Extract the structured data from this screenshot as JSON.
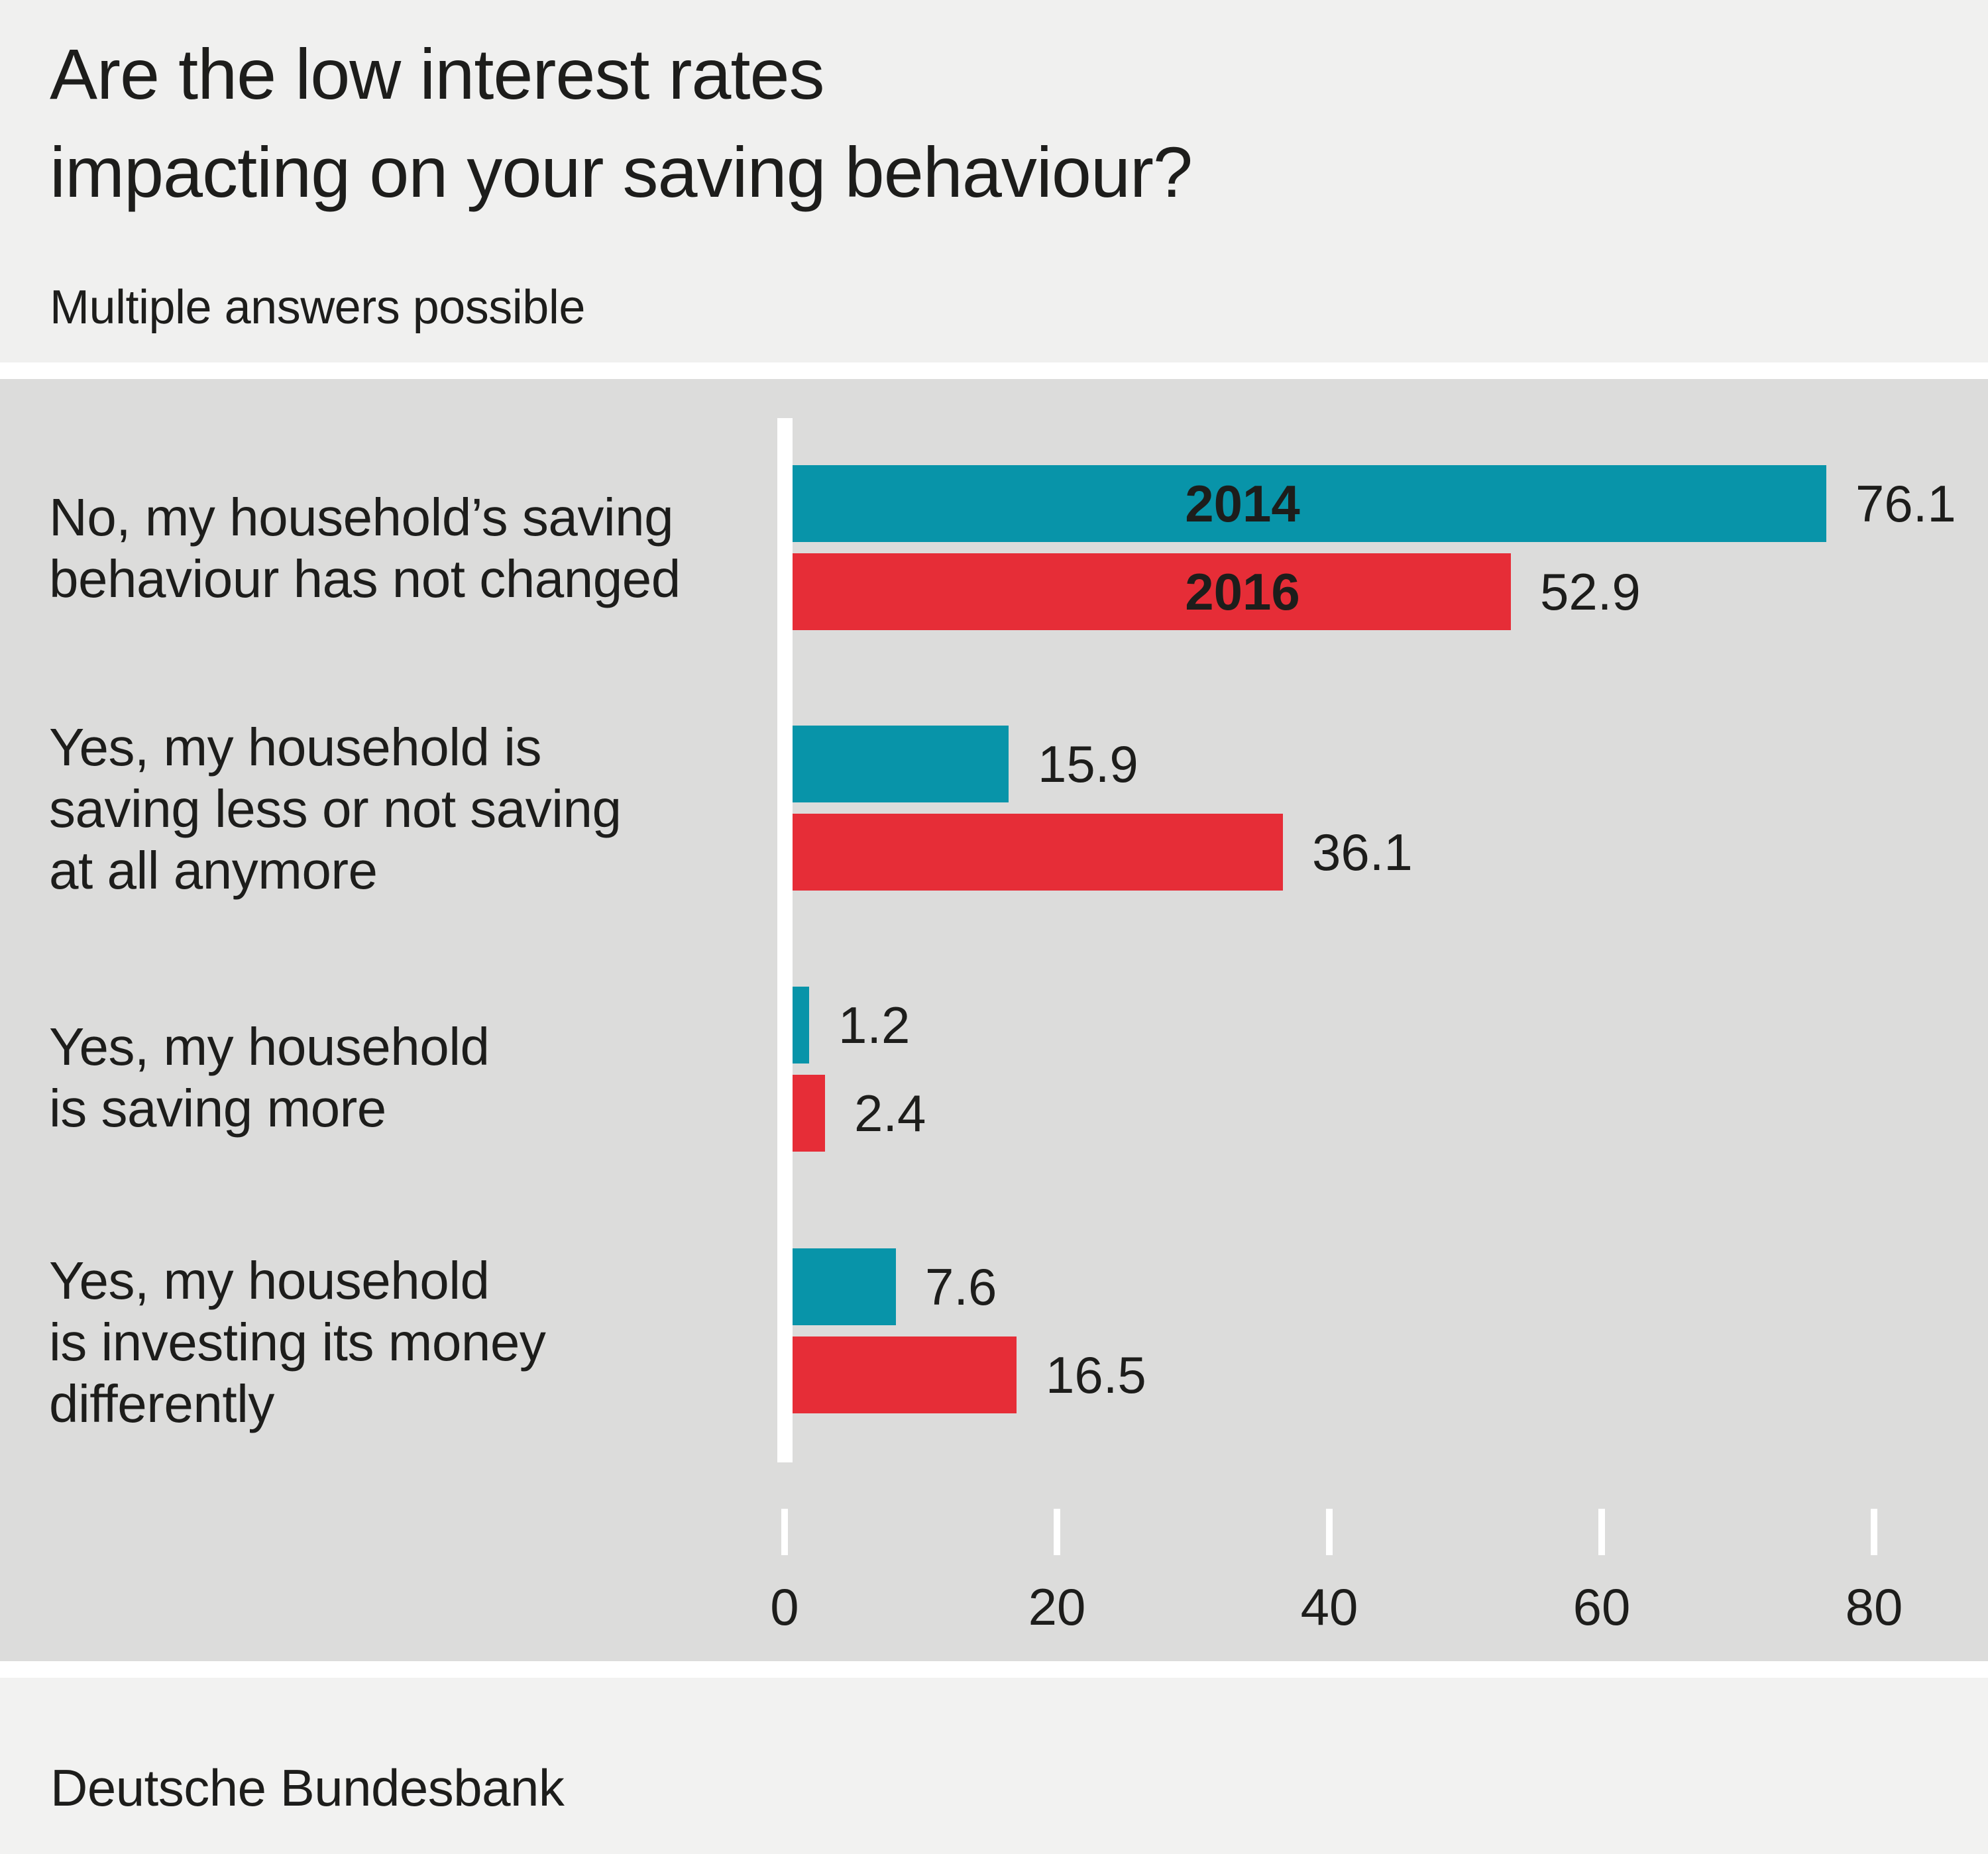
{
  "header": {
    "title_line1": "Are the low interest rates",
    "title_line2": "impacting on your saving behaviour?",
    "subtitle": "Multiple answers possible"
  },
  "footer": {
    "source": "Deutsche Bundesbank"
  },
  "colors": {
    "header_bg": "#f0f0ef",
    "plot_bg": "#dcdcdb",
    "footer_bg": "#f2f2f1",
    "axis_and_ticks": "#ffffff",
    "text": "#1d1d1b",
    "series_2014": "#0894a9",
    "series_2016": "#e62d37"
  },
  "chart_data": {
    "type": "bar",
    "orientation": "horizontal",
    "title": "Are the low interest rates impacting on your saving behaviour?",
    "subtitle": "Multiple answers possible",
    "categories": [
      "No, my household’s saving\nbehaviour has not changed",
      "Yes, my household is\nsaving less or not saving\nat all anymore",
      "Yes, my household\nis saving more",
      "Yes, my household\nis investing its money\ndifferently"
    ],
    "series": [
      {
        "name": "2014",
        "color": "#0894a9",
        "values": [
          76.1,
          15.9,
          1.2,
          7.6
        ]
      },
      {
        "name": "2016",
        "color": "#e62d37",
        "values": [
          52.9,
          36.1,
          2.4,
          16.5
        ]
      }
    ],
    "xlim": [
      0,
      88
    ],
    "xticks": [
      0,
      20,
      40,
      60,
      80
    ],
    "grid": false,
    "legend": "year-labels-inside-first-bars",
    "value_labels": "right-of-bar-end",
    "source": "Deutsche Bundesbank"
  }
}
